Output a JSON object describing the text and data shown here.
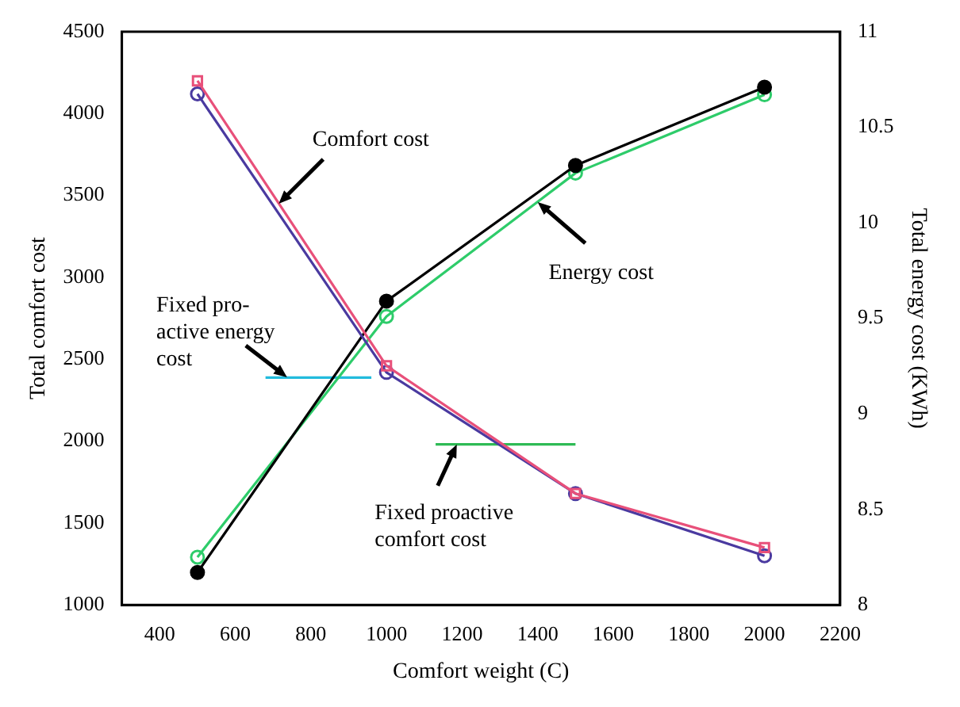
{
  "chart_data": {
    "type": "line",
    "xlabel": "Comfort weight (C)",
    "ylabel": "Total comfort cost",
    "y2label": "Total energy cost (KWh)",
    "xlim": [
      300,
      2200
    ],
    "xticks": [
      400,
      600,
      800,
      1000,
      1200,
      1400,
      1600,
      1800,
      2000,
      2200
    ],
    "ylim": [
      1000,
      4500
    ],
    "yticks": [
      1000,
      1500,
      2000,
      2500,
      3000,
      3500,
      4000,
      4500
    ],
    "y2lim": [
      8,
      11
    ],
    "y2ticks": [
      8,
      8.5,
      9,
      9.5,
      10,
      10.5,
      11
    ],
    "grid": false,
    "legend": false,
    "line_style": "solid",
    "x": [
      500,
      1000,
      1500,
      2000
    ],
    "series": [
      {
        "color": "#e8507a",
        "marker": "square",
        "values": [
          4200,
          2460,
          1680,
          1350
        ]
      },
      {
        "color": "#4a3aa0",
        "marker": "circle",
        "values": [
          4120,
          2420,
          1680,
          1300
        ]
      },
      {
        "color": "#000000",
        "marker": "circle",
        "axis": "y2",
        "values": [
          8.17,
          9.59,
          10.3,
          10.71
        ]
      },
      {
        "color": "#2ecc6a",
        "marker": "circle",
        "axis": "y2",
        "values": [
          8.25,
          9.51,
          10.26,
          10.67
        ]
      },
      {
        "color": "#22bbdd",
        "marker": "none",
        "axis": "y2",
        "x": [
          680,
          960
        ],
        "values": [
          9.19,
          9.19
        ]
      },
      {
        "color": "#2ebb55",
        "marker": "none",
        "x": [
          1130,
          1500
        ],
        "values": [
          1980,
          1980
        ]
      }
    ],
    "annotations": [
      {
        "text": "Comfort cost",
        "x": 715,
        "y": 3450
      },
      {
        "text": "Energy cost",
        "x": 1400,
        "y": 3460
      },
      {
        "text": "Fixed pro-\nactive energy\ncost",
        "x": 737,
        "y": 2390
      },
      {
        "text": "Fixed proactive\ncomfort cost",
        "x": 1186,
        "y": 1980
      }
    ]
  }
}
